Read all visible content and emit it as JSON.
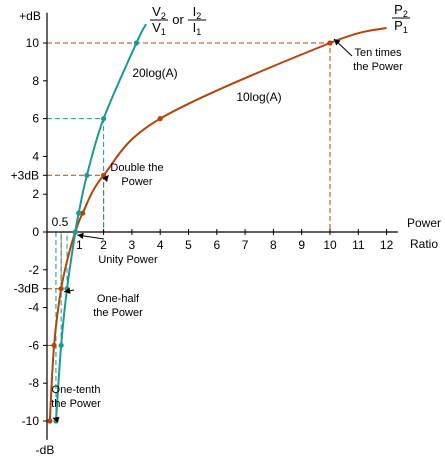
{
  "chart_data": {
    "type": "line",
    "xlabel": [
      "Power",
      "Ratio"
    ],
    "ylabel_top": "+dB",
    "ylabel_bottom": "-dB",
    "x_ticks": [
      1,
      2,
      3,
      4,
      5,
      6,
      7,
      8,
      9,
      10,
      11,
      12
    ],
    "y_ticks": [
      10,
      8,
      6,
      4,
      2,
      0,
      -2,
      -4,
      -6,
      -8,
      -10
    ],
    "x_tick_05": "0.5",
    "xlim": [
      0,
      12.4
    ],
    "ylim": [
      -11,
      11.6
    ],
    "colors": {
      "power": "#b5430c",
      "voltage": "#1a9a93",
      "guide_orange": "#b5430c",
      "guide_teal": "#1a9a93"
    },
    "series": [
      {
        "key": "power",
        "name": "10log(A)",
        "points": [
          [
            0.1,
            -10
          ],
          [
            0.25,
            -6
          ],
          [
            0.5,
            -3
          ],
          [
            0.8,
            -1
          ],
          [
            1,
            0
          ],
          [
            1.26,
            1
          ],
          [
            2,
            3
          ],
          [
            4,
            6
          ],
          [
            10,
            10
          ],
          [
            12,
            10.8
          ]
        ],
        "markers": [
          [
            0.1,
            -10
          ],
          [
            0.25,
            -6
          ],
          [
            0.5,
            -3
          ],
          [
            1,
            0
          ],
          [
            1.26,
            1
          ],
          [
            2,
            3
          ],
          [
            4,
            6
          ],
          [
            10,
            10
          ]
        ]
      },
      {
        "key": "voltage",
        "name": "20log(A)",
        "points": [
          [
            0.316,
            -10
          ],
          [
            0.5,
            -6
          ],
          [
            0.708,
            -3
          ],
          [
            1,
            0
          ],
          [
            1.12,
            1
          ],
          [
            1.41,
            3
          ],
          [
            2,
            6
          ],
          [
            3.16,
            10
          ],
          [
            3.5,
            11
          ]
        ],
        "markers": [
          [
            0.316,
            -10
          ],
          [
            0.5,
            -6
          ],
          [
            0.708,
            -3
          ],
          [
            1,
            0
          ],
          [
            1.12,
            1
          ],
          [
            1.41,
            3
          ],
          [
            2,
            6
          ],
          [
            3.16,
            10
          ]
        ]
      }
    ],
    "reference_lines": [
      {
        "color": "guide_orange",
        "points": [
          [
            0,
            10
          ],
          [
            10,
            10
          ],
          [
            10,
            0
          ]
        ]
      },
      {
        "color": "guide_orange",
        "points": [
          [
            0,
            3
          ],
          [
            2,
            3
          ],
          [
            2,
            0
          ]
        ]
      },
      {
        "color": "guide_orange",
        "points": [
          [
            0,
            -3
          ],
          [
            0.5,
            -3
          ],
          [
            0.5,
            0
          ]
        ]
      },
      {
        "color": "guide_orange",
        "points": [
          [
            0,
            -6
          ],
          [
            0.25,
            -6
          ]
        ]
      },
      {
        "color": "guide_orange",
        "points": [
          [
            0,
            -10
          ],
          [
            0.1,
            -10
          ]
        ]
      },
      {
        "color": "guide_teal",
        "points": [
          [
            0,
            6
          ],
          [
            2,
            6
          ],
          [
            2,
            0
          ]
        ]
      },
      {
        "color": "guide_teal",
        "points": [
          [
            0.5,
            -6
          ],
          [
            0.5,
            0
          ]
        ]
      },
      {
        "color": "guide_teal",
        "points": [
          [
            0.708,
            -3
          ],
          [
            0.708,
            0
          ]
        ]
      },
      {
        "color": "guide_teal",
        "points": [
          [
            0.316,
            -10
          ],
          [
            0.316,
            0
          ]
        ]
      }
    ],
    "y_special_labels": [
      {
        "y": 3,
        "text": "+3dB"
      },
      {
        "y": -3,
        "text": "-3dB"
      }
    ],
    "annotations": [
      {
        "lines": [
          "Ten times",
          "the Power"
        ],
        "target": [
          10,
          10
        ]
      },
      {
        "lines": [
          "Double the",
          "Power"
        ],
        "target": [
          2,
          3
        ]
      },
      {
        "lines": [
          "Unity Power"
        ],
        "target": [
          1,
          0
        ]
      },
      {
        "lines": [
          "One-half",
          "the Power"
        ],
        "target": [
          0.5,
          -3
        ]
      },
      {
        "lines": [
          "One-tenth",
          "the Power"
        ],
        "target": [
          0.1,
          -10
        ]
      }
    ],
    "legend_voltage": {
      "v2": "V",
      "v2_sub": "2",
      "v1": "V",
      "v1_sub": "1",
      "or": "or",
      "i2": "I",
      "i2_sub": "2",
      "i1": "I",
      "i1_sub": "1"
    },
    "legend_power": {
      "p2": "P",
      "p2_sub": "2",
      "p1": "P",
      "p1_sub": "1"
    }
  }
}
